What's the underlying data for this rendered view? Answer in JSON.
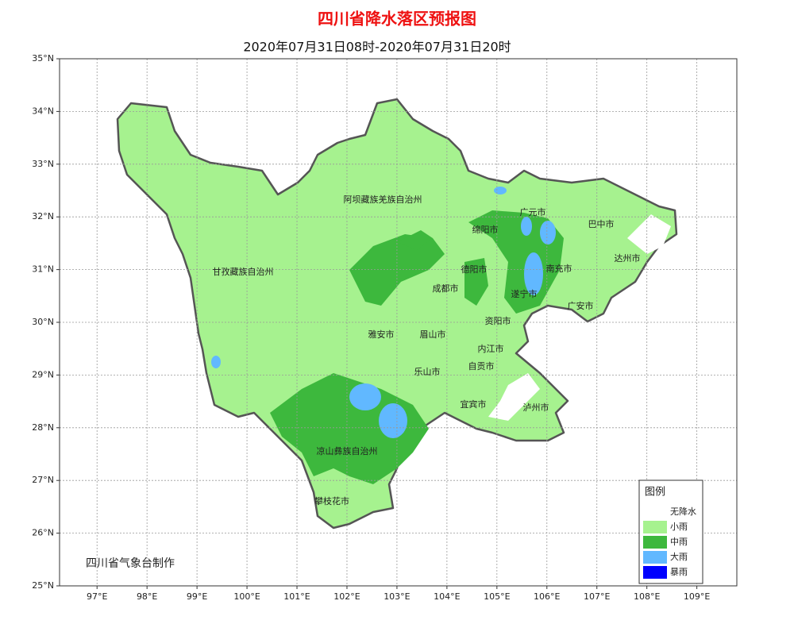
{
  "header": {
    "title": "四川省降水落区预报图",
    "subtitle": "2020年07月31日08时-2020年07月31日20时"
  },
  "axes": {
    "lon_lim": [
      96.25,
      109.8
    ],
    "lat_lim": [
      25,
      35
    ],
    "lat_ticks": [
      {
        "value": 25,
        "label": "25°N"
      },
      {
        "value": 26,
        "label": "26°N"
      },
      {
        "value": 27,
        "label": "27°N"
      },
      {
        "value": 28,
        "label": "28°N"
      },
      {
        "value": 29,
        "label": "29°N"
      },
      {
        "value": 30,
        "label": "30°N"
      },
      {
        "value": 31,
        "label": "31°N"
      },
      {
        "value": 32,
        "label": "32°N"
      },
      {
        "value": 33,
        "label": "33°N"
      },
      {
        "value": 34,
        "label": "34°N"
      },
      {
        "value": 35,
        "label": "35°N"
      }
    ],
    "lon_ticks": [
      {
        "value": 97,
        "label": "97°E"
      },
      {
        "value": 98,
        "label": "98°E"
      },
      {
        "value": 99,
        "label": "99°E"
      },
      {
        "value": 100,
        "label": "100°E"
      },
      {
        "value": 101,
        "label": "101°E"
      },
      {
        "value": 102,
        "label": "102°E"
      },
      {
        "value": 103,
        "label": "103°E"
      },
      {
        "value": 104,
        "label": "104°E"
      },
      {
        "value": 105,
        "label": "105°E"
      },
      {
        "value": 106,
        "label": "106°E"
      },
      {
        "value": 107,
        "label": "107°E"
      },
      {
        "value": 108,
        "label": "108°E"
      },
      {
        "value": 109,
        "label": "109°E"
      }
    ],
    "grid": true
  },
  "places": [
    "阿坝藏族羌族自治州",
    "甘孜藏族自治州",
    "广元市",
    "巴中市",
    "绵阳市",
    "达州市",
    "德阳市",
    "南充市",
    "成都市",
    "遂宁市",
    "广安市",
    "资阳市",
    "雅安市",
    "眉山市",
    "内江市",
    "自贡市",
    "乐山市",
    "宜宾市",
    "泸州市",
    "凉山彝族自治州",
    "攀枝花市"
  ],
  "legend": {
    "title": "图例",
    "items": [
      {
        "label": "无降水",
        "color": "#ffffff"
      },
      {
        "label": "小雨",
        "color": "#a6f28f"
      },
      {
        "label": "中雨",
        "color": "#3db83d"
      },
      {
        "label": "大雨",
        "color": "#61b8ff"
      },
      {
        "label": "暴雨",
        "color": "#0000fe"
      }
    ]
  },
  "credit": "四川省气象台制作"
}
